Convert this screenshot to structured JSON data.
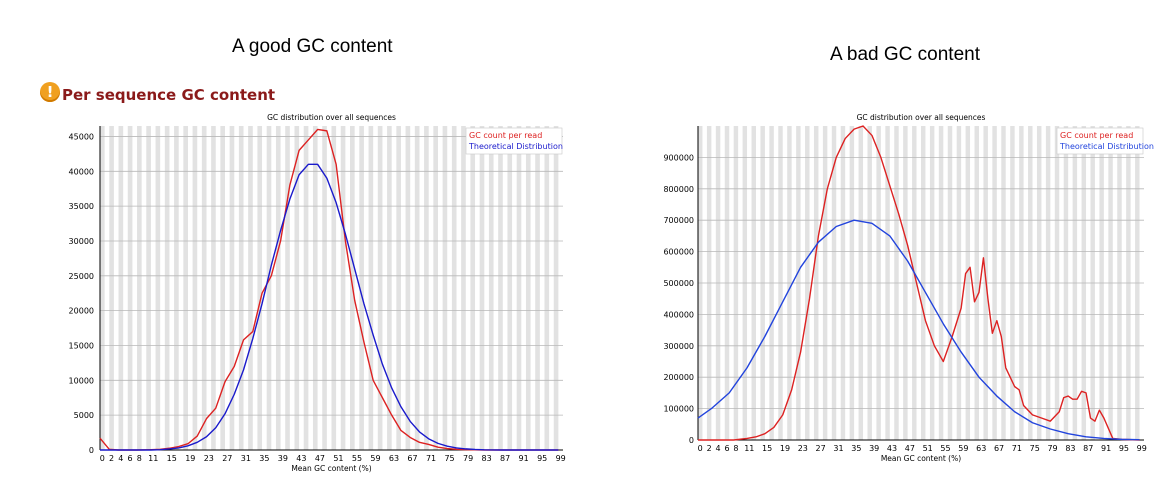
{
  "captions": {
    "left": "A good GC content",
    "right": "A bad GC content"
  },
  "section": {
    "title": "Per sequence GC content",
    "icon": "warning-icon"
  },
  "colors": {
    "gc_count": "#dd2222",
    "theoretical": "#1a1acc",
    "stripe": "#e2e2e2"
  },
  "chart_data": [
    {
      "type": "line",
      "title": "GC distribution over all sequences",
      "xlabel": "Mean GC content (%)",
      "ylabel": "",
      "x_tick_labels": [
        "0",
        "2",
        "4",
        "6",
        "8",
        "11",
        "15",
        "19",
        "23",
        "27",
        "31",
        "35",
        "39",
        "43",
        "47",
        "51",
        "55",
        "59",
        "63",
        "67",
        "71",
        "75",
        "79",
        "83",
        "87",
        "91",
        "95",
        "99"
      ],
      "y_ticks": [
        0,
        5000,
        10000,
        15000,
        20000,
        25000,
        30000,
        35000,
        40000,
        45000
      ],
      "xlim": [
        0,
        100
      ],
      "ylim": [
        0,
        46500
      ],
      "legend_position": "top-right",
      "series": [
        {
          "name": "GC count per read",
          "color": "#dd2222",
          "x": [
            0,
            2,
            4,
            6,
            8,
            11,
            13,
            15,
            17,
            19,
            21,
            23,
            25,
            27,
            29,
            31,
            33,
            35,
            37,
            39,
            41,
            43,
            45,
            47,
            49,
            51,
            53,
            55,
            57,
            59,
            61,
            63,
            65,
            67,
            69,
            71,
            73,
            75,
            77,
            79,
            81,
            83,
            85,
            87,
            89,
            91,
            95,
            99
          ],
          "y": [
            1700,
            100,
            0,
            0,
            0,
            50,
            100,
            250,
            500,
            900,
            2000,
            4500,
            6000,
            9800,
            12000,
            15800,
            17000,
            22500,
            25000,
            30000,
            38000,
            43000,
            44500,
            46000,
            45800,
            41000,
            30000,
            21500,
            15500,
            10000,
            7500,
            5000,
            2800,
            1800,
            1100,
            800,
            400,
            200,
            100,
            50,
            20,
            0,
            0,
            0,
            0,
            0,
            0,
            0
          ]
        },
        {
          "name": "Theoretical Distribution",
          "color": "#1a1acc",
          "x": [
            0,
            4,
            8,
            11,
            13,
            15,
            17,
            19,
            21,
            23,
            25,
            27,
            29,
            31,
            33,
            35,
            37,
            39,
            41,
            43,
            45,
            47,
            49,
            51,
            53,
            55,
            57,
            59,
            61,
            63,
            65,
            67,
            69,
            71,
            73,
            75,
            77,
            79,
            81,
            83,
            85,
            87,
            89,
            91,
            95,
            99
          ],
          "y": [
            0,
            0,
            0,
            0,
            50,
            150,
            300,
            600,
            1100,
            1900,
            3200,
            5200,
            8000,
            11500,
            16000,
            21000,
            26500,
            31500,
            36000,
            39500,
            41000,
            41000,
            39000,
            35500,
            31000,
            26000,
            21000,
            16500,
            12300,
            8900,
            6200,
            4100,
            2600,
            1600,
            950,
            550,
            300,
            160,
            80,
            30,
            10,
            0,
            0,
            0,
            0,
            0
          ]
        }
      ]
    },
    {
      "type": "line",
      "title": "GC distribution over all sequences",
      "xlabel": "Mean GC content (%)",
      "ylabel": "",
      "x_tick_labels": [
        "0",
        "2",
        "4",
        "6",
        "8",
        "11",
        "15",
        "19",
        "23",
        "27",
        "31",
        "35",
        "39",
        "43",
        "47",
        "51",
        "55",
        "59",
        "63",
        "67",
        "71",
        "75",
        "79",
        "83",
        "87",
        "91",
        "95",
        "99"
      ],
      "y_ticks": [
        0,
        100000,
        200000,
        300000,
        400000,
        500000,
        600000,
        700000,
        800000,
        900000
      ],
      "xlim": [
        0,
        100
      ],
      "ylim": [
        0,
        1000000
      ],
      "legend_position": "top-right",
      "series": [
        {
          "name": "GC count per read",
          "color": "#dd2222",
          "x": [
            0,
            4,
            8,
            11,
            13,
            15,
            17,
            19,
            21,
            23,
            25,
            27,
            29,
            31,
            33,
            35,
            37,
            39,
            41,
            43,
            45,
            47,
            49,
            51,
            53,
            55,
            57,
            59,
            60,
            61,
            62,
            63,
            64,
            65,
            66,
            67,
            68,
            69,
            71,
            72,
            73,
            75,
            77,
            79,
            81,
            82,
            83,
            84,
            85,
            86,
            87,
            88,
            89,
            90,
            91,
            93,
            95,
            99
          ],
          "y": [
            0,
            0,
            0,
            5000,
            10000,
            20000,
            40000,
            80000,
            160000,
            280000,
            450000,
            650000,
            800000,
            900000,
            960000,
            990000,
            1000000,
            970000,
            900000,
            810000,
            720000,
            620000,
            500000,
            380000,
            300000,
            250000,
            330000,
            420000,
            530000,
            550000,
            440000,
            470000,
            580000,
            450000,
            340000,
            380000,
            330000,
            230000,
            170000,
            160000,
            110000,
            80000,
            70000,
            60000,
            90000,
            135000,
            140000,
            130000,
            130000,
            155000,
            150000,
            70000,
            60000,
            95000,
            70000,
            5000,
            2000,
            0
          ]
        },
        {
          "name": "Theoretical Distribution",
          "color": "#2244dd",
          "x": [
            0,
            3,
            7,
            11,
            15,
            19,
            23,
            27,
            31,
            35,
            39,
            43,
            47,
            51,
            55,
            59,
            63,
            67,
            71,
            75,
            79,
            83,
            87,
            91,
            95,
            99
          ],
          "y": [
            70000,
            100000,
            150000,
            230000,
            330000,
            440000,
            550000,
            630000,
            680000,
            700000,
            690000,
            650000,
            570000,
            470000,
            370000,
            280000,
            200000,
            140000,
            90000,
            55000,
            35000,
            20000,
            10000,
            5000,
            2000,
            1000
          ]
        }
      ]
    }
  ]
}
